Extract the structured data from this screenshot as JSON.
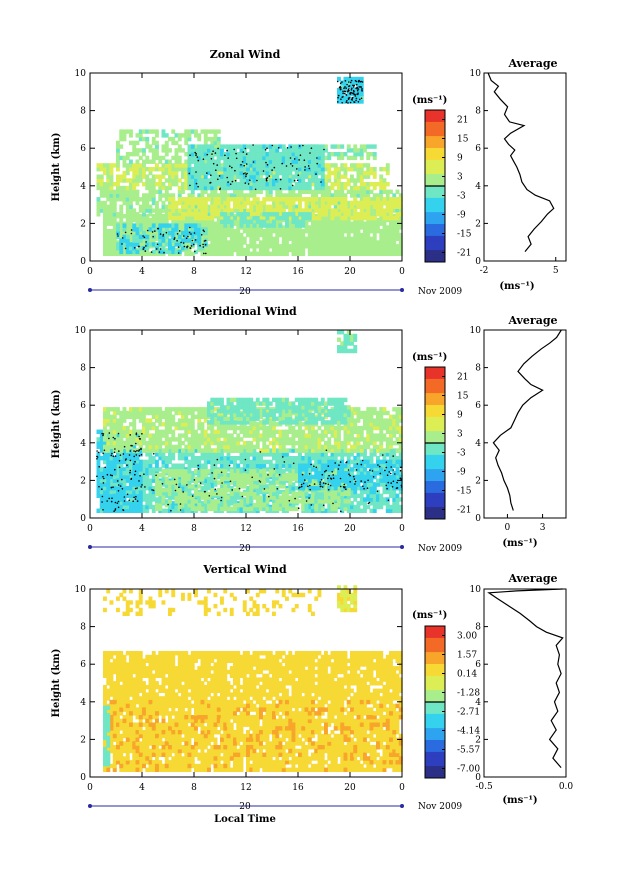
{
  "chart_data": [
    {
      "type": "heatmap",
      "title": "Zonal Wind",
      "ylabel": "Height (km)",
      "xlim": [
        0,
        24
      ],
      "ylim": [
        0,
        10
      ],
      "xticks": [
        "0",
        "4",
        "8",
        "12",
        "16",
        "20",
        "0"
      ],
      "yticks": [
        "0",
        "2",
        "4",
        "6",
        "8",
        "10"
      ],
      "day_label": "20",
      "date_label": "Nov 2009",
      "colorbar": {
        "unit_label": "(ms⁻¹)",
        "ticks": [
          "21",
          "15",
          "9",
          "3",
          "-3",
          "-9",
          "-15",
          "-21"
        ],
        "range": [
          -24,
          24
        ]
      },
      "average_profile": {
        "title": "Average",
        "xlabel": "(ms⁻¹)",
        "xlim": [
          -2,
          6
        ],
        "xticks": [
          "-2",
          "5"
        ],
        "yticks": [
          "0",
          "2",
          "4",
          "6",
          "8",
          "10"
        ],
        "points": [
          [
            2.0,
            0.5
          ],
          [
            2.6,
            0.9
          ],
          [
            2.3,
            1.3
          ],
          [
            2.9,
            1.7
          ],
          [
            3.6,
            2.1
          ],
          [
            4.2,
            2.5
          ],
          [
            4.8,
            2.8
          ],
          [
            4.4,
            3.2
          ],
          [
            3.0,
            3.5
          ],
          [
            2.2,
            3.8
          ],
          [
            1.7,
            4.2
          ],
          [
            1.5,
            4.6
          ],
          [
            1.2,
            5.0
          ],
          [
            0.9,
            5.3
          ],
          [
            0.6,
            5.6
          ],
          [
            1.0,
            5.9
          ],
          [
            0.4,
            6.2
          ],
          [
            0.0,
            6.5
          ],
          [
            0.6,
            6.8
          ],
          [
            1.9,
            7.2
          ],
          [
            0.5,
            7.4
          ],
          [
            0.0,
            7.8
          ],
          [
            0.3,
            8.2
          ],
          [
            -0.4,
            8.6
          ],
          [
            -1.0,
            9.0
          ],
          [
            -0.6,
            9.3
          ],
          [
            -1.3,
            9.6
          ],
          [
            -1.6,
            10.0
          ]
        ]
      },
      "fields": [
        {
          "value": 2,
          "bbox_t": [
            1,
            24
          ],
          "bbox_h": [
            0.3,
            2.4
          ],
          "density": 0.92
        },
        {
          "value": 1,
          "bbox_t": [
            0.5,
            24
          ],
          "bbox_h": [
            2.4,
            3.8
          ],
          "density": 0.75
        },
        {
          "value": 6,
          "bbox_t": [
            6,
            24
          ],
          "bbox_h": [
            2.2,
            3.4
          ],
          "density": 0.7
        },
        {
          "value": 4,
          "bbox_t": [
            0.5,
            23
          ],
          "bbox_h": [
            3.8,
            5.2
          ],
          "density": 0.72
        },
        {
          "value": 1,
          "bbox_t": [
            2,
            10
          ],
          "bbox_h": [
            5.2,
            6.9
          ],
          "density": 0.55
        },
        {
          "value": 0,
          "bbox_t": [
            16,
            22
          ],
          "bbox_h": [
            5.4,
            6.2
          ],
          "density": 0.5
        },
        {
          "value": -3,
          "bbox_t": [
            7.5,
            18
          ],
          "bbox_h": [
            3.8,
            6.2
          ],
          "density": 0.9
        },
        {
          "value": -5,
          "bbox_t": [
            19,
            21
          ],
          "bbox_h": [
            8.4,
            9.6
          ],
          "density": 0.8
        },
        {
          "value": -4,
          "bbox_t": [
            2,
            9
          ],
          "bbox_h": [
            0.4,
            1.8
          ],
          "density": 0.6
        },
        {
          "value": -2,
          "bbox_t": [
            10,
            17
          ],
          "bbox_h": [
            1.8,
            2.6
          ],
          "density": 0.6
        }
      ]
    },
    {
      "type": "heatmap",
      "title": "Meridional Wind",
      "ylabel": "Height (km)",
      "xlim": [
        0,
        24
      ],
      "ylim": [
        0,
        10
      ],
      "xticks": [
        "0",
        "4",
        "8",
        "12",
        "16",
        "20",
        "0"
      ],
      "yticks": [
        "0",
        "2",
        "4",
        "6",
        "8",
        "10"
      ],
      "day_label": "20",
      "date_label": "Nov 2009",
      "colorbar": {
        "unit_label": "(ms⁻¹)",
        "ticks": [
          "21",
          "15",
          "9",
          "3",
          "-3",
          "-9",
          "-15",
          "-21"
        ],
        "range": [
          -24,
          24
        ]
      },
      "average_profile": {
        "title": "Average",
        "xlabel": "(ms⁻¹)",
        "xlim": [
          -2,
          5
        ],
        "xticks": [
          "0",
          "3"
        ],
        "yticks": [
          "0",
          "2",
          "4",
          "6",
          "8",
          "10"
        ],
        "points": [
          [
            0.5,
            0.4
          ],
          [
            0.3,
            0.8
          ],
          [
            0.2,
            1.2
          ],
          [
            0.0,
            1.6
          ],
          [
            -0.3,
            2.0
          ],
          [
            -0.5,
            2.4
          ],
          [
            -0.8,
            2.8
          ],
          [
            -1.0,
            3.2
          ],
          [
            -0.7,
            3.6
          ],
          [
            -1.2,
            4.0
          ],
          [
            -0.6,
            4.4
          ],
          [
            0.3,
            4.8
          ],
          [
            0.6,
            5.2
          ],
          [
            0.9,
            5.6
          ],
          [
            1.3,
            6.0
          ],
          [
            2.0,
            6.4
          ],
          [
            3.0,
            6.8
          ],
          [
            2.0,
            7.1
          ],
          [
            1.5,
            7.4
          ],
          [
            0.9,
            7.8
          ],
          [
            1.4,
            8.2
          ],
          [
            2.1,
            8.6
          ],
          [
            2.9,
            9.0
          ],
          [
            3.6,
            9.3
          ],
          [
            4.2,
            9.6
          ],
          [
            4.6,
            10.0
          ]
        ]
      },
      "fields": [
        {
          "value": -3,
          "bbox_t": [
            1,
            24
          ],
          "bbox_h": [
            0.3,
            3.6
          ],
          "density": 0.8
        },
        {
          "value": -5,
          "bbox_t": [
            0.5,
            4
          ],
          "bbox_h": [
            0.3,
            4.6
          ],
          "density": 0.85
        },
        {
          "value": 3,
          "bbox_t": [
            1,
            24
          ],
          "bbox_h": [
            3.5,
            5.8
          ],
          "density": 0.8
        },
        {
          "value": 1,
          "bbox_t": [
            5,
            20
          ],
          "bbox_h": [
            0.4,
            2.6
          ],
          "density": 0.7
        },
        {
          "value": -1,
          "bbox_t": [
            9,
            20
          ],
          "bbox_h": [
            5.0,
            6.4
          ],
          "density": 0.75
        },
        {
          "value": -5,
          "bbox_t": [
            16,
            24
          ],
          "bbox_h": [
            1.5,
            3.0
          ],
          "density": 0.7
        },
        {
          "value": -1,
          "bbox_t": [
            19,
            20.5
          ],
          "bbox_h": [
            8.8,
            9.8
          ],
          "density": 0.8
        }
      ]
    },
    {
      "type": "heatmap",
      "title": "Vertical Wind",
      "ylabel": "Height (km)",
      "xlabel": "Local Time",
      "xlim": [
        0,
        24
      ],
      "ylim": [
        0,
        10
      ],
      "xticks": [
        "0",
        "4",
        "8",
        "12",
        "16",
        "20",
        "0"
      ],
      "yticks": [
        "0",
        "2",
        "4",
        "6",
        "8",
        "10"
      ],
      "day_label": "20",
      "date_label": "Nov 2009",
      "colorbar": {
        "unit_label": "(ms⁻¹)",
        "ticks": [
          "3.00",
          "1.57",
          "0.14",
          "-1.28",
          "-2.71",
          "-4.14",
          "-5.57",
          "-7.00"
        ],
        "range": [
          -7.7,
          3.7
        ]
      },
      "average_profile": {
        "title": "Average",
        "xlabel": "(ms⁻¹)",
        "xlim": [
          -0.5,
          0.0
        ],
        "xticks": [
          "-0.5",
          "0.0"
        ],
        "yticks": [
          "0",
          "2",
          "4",
          "6",
          "8",
          "10"
        ],
        "points": [
          [
            -0.03,
            0.5
          ],
          [
            -0.08,
            1.0
          ],
          [
            -0.05,
            1.5
          ],
          [
            -0.1,
            2.0
          ],
          [
            -0.06,
            2.5
          ],
          [
            -0.09,
            3.0
          ],
          [
            -0.05,
            3.5
          ],
          [
            -0.07,
            4.0
          ],
          [
            -0.04,
            4.5
          ],
          [
            -0.06,
            5.0
          ],
          [
            -0.03,
            5.5
          ],
          [
            -0.05,
            6.0
          ],
          [
            -0.04,
            6.5
          ],
          [
            -0.06,
            7.0
          ],
          [
            -0.02,
            7.4
          ],
          [
            -0.12,
            7.7
          ],
          [
            -0.18,
            8.0
          ],
          [
            -0.22,
            8.3
          ],
          [
            -0.28,
            8.7
          ],
          [
            -0.35,
            9.1
          ],
          [
            -0.42,
            9.5
          ],
          [
            -0.47,
            9.8
          ],
          [
            -0.3,
            9.9
          ],
          [
            -0.02,
            10.0
          ]
        ]
      },
      "fields": [
        {
          "value": 0.4,
          "bbox_t": [
            1,
            24
          ],
          "bbox_h": [
            0.3,
            6.6
          ],
          "density": 0.85
        },
        {
          "value": 0.9,
          "bbox_t": [
            1,
            24
          ],
          "bbox_h": [
            0.3,
            4.0
          ],
          "density": 0.25
        },
        {
          "value": 0.4,
          "bbox_t": [
            1,
            18
          ],
          "bbox_h": [
            8.6,
            9.8
          ],
          "density": 0.22
        },
        {
          "value": -0.2,
          "bbox_t": [
            19,
            20.3
          ],
          "bbox_h": [
            8.8,
            10.0
          ],
          "density": 0.8
        },
        {
          "value": -2.4,
          "bbox_t": [
            1.0,
            1.5
          ],
          "bbox_h": [
            0.6,
            3.8
          ],
          "density": 0.8
        }
      ]
    }
  ]
}
